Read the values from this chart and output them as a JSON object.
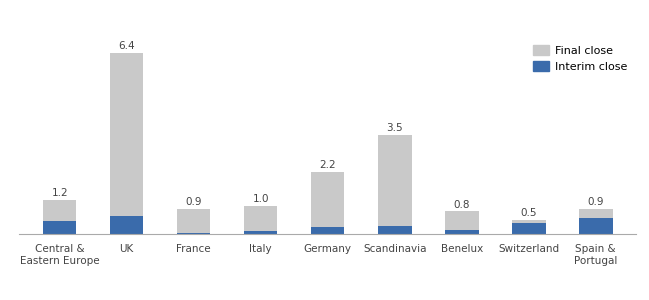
{
  "categories": [
    "Central &\nEastern Europe",
    "UK",
    "France",
    "Italy",
    "Germany",
    "Scandinavia",
    "Benelux",
    "Switzerland",
    "Spain &\nPortugal"
  ],
  "total_values": [
    1.2,
    6.4,
    0.9,
    1.0,
    2.2,
    3.5,
    0.8,
    0.5,
    0.9
  ],
  "interim_values": [
    0.45,
    0.65,
    0.05,
    0.1,
    0.25,
    0.3,
    0.15,
    0.38,
    0.58
  ],
  "final_color": "#c9c9c9",
  "interim_color": "#3a6bab",
  "label_color": "#444444",
  "background_color": "#ffffff",
  "legend_labels": [
    "Final close",
    "Interim close"
  ],
  "bar_width": 0.5,
  "ylim": [
    0,
    7.0
  ],
  "label_fontsize": 7.5,
  "tick_fontsize": 7.5,
  "legend_fontsize": 8
}
